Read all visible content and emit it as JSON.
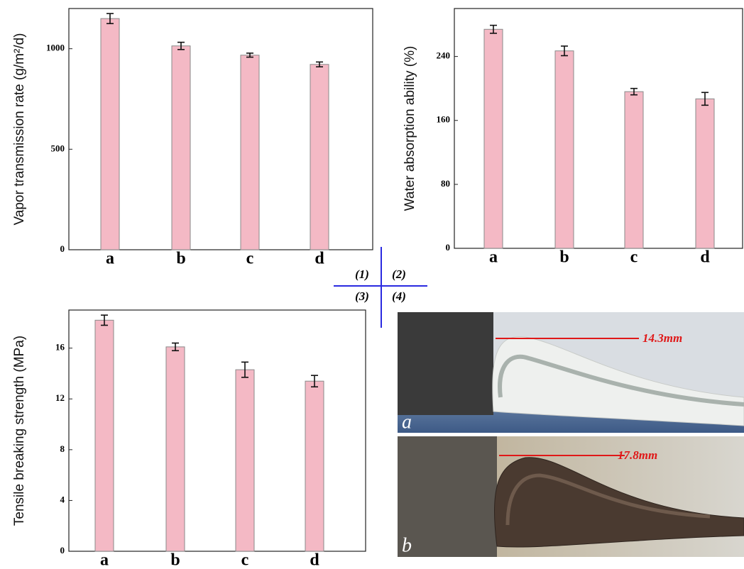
{
  "chart_data": [
    {
      "type": "bar",
      "y_label": "Vapor transmission rate (g/m²/d)",
      "categories": [
        "a",
        "b",
        "c",
        "d"
      ],
      "values": [
        1150,
        1014,
        968,
        922
      ],
      "errors": [
        25,
        18,
        10,
        12
      ],
      "color": "#f4b9c5",
      "ylim": [
        0,
        1200
      ],
      "yticks": [
        0,
        500,
        1000
      ]
    },
    {
      "type": "bar",
      "y_label": "Water absorption ability (%)",
      "categories": [
        "a",
        "b",
        "c",
        "d"
      ],
      "values": [
        274,
        247,
        196,
        187
      ],
      "errors": [
        5,
        6,
        4,
        8
      ],
      "color": "#f4b9c5",
      "ylim": [
        0,
        300
      ],
      "yticks": [
        0,
        80,
        160,
        240
      ]
    },
    {
      "type": "bar",
      "y_label": "Tensile breaking strength (MPa)",
      "categories": [
        "a",
        "b",
        "c",
        "d"
      ],
      "values": [
        18.2,
        16.1,
        14.3,
        13.4
      ],
      "errors": [
        0.4,
        0.3,
        0.6,
        0.45
      ],
      "color": "#f4b9c5",
      "ylim": [
        0,
        19
      ],
      "yticks": [
        0,
        4,
        8,
        12,
        16
      ]
    }
  ],
  "panel_labels": [
    "(1)",
    "(2)",
    "(3)",
    "(4)"
  ],
  "photos": [
    {
      "label": "a",
      "measure": "14.3mm"
    },
    {
      "label": "b",
      "measure": "17.8mm"
    }
  ]
}
